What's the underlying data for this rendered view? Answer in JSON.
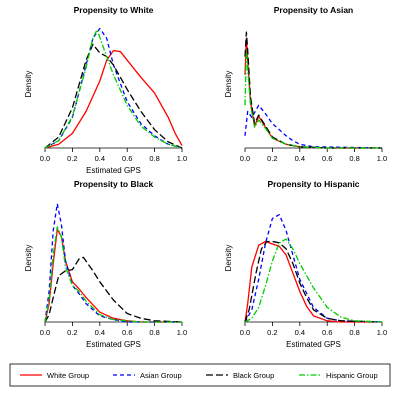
{
  "chart_data": [
    {
      "type": "line",
      "title": "Propensity to White",
      "xlabel": "Estimated GPS",
      "ylabel": "Density",
      "xlim": [
        0,
        1
      ],
      "xticks": [
        "0.0",
        "0.2",
        "0.4",
        "0.6",
        "0.8",
        "1.0"
      ],
      "y_ticks_shown": false,
      "grid": false,
      "series": [
        {
          "name": "White Group",
          "color": "#ff0000",
          "dash": "solid",
          "x": [
            0.0,
            0.1,
            0.2,
            0.3,
            0.4,
            0.45,
            0.5,
            0.55,
            0.6,
            0.7,
            0.8,
            0.9,
            0.95,
            1.0
          ],
          "y": [
            0.0,
            0.03,
            0.12,
            0.3,
            0.55,
            0.72,
            0.8,
            0.79,
            0.72,
            0.58,
            0.45,
            0.25,
            0.12,
            0.02
          ]
        },
        {
          "name": "Asian Group",
          "color": "#0000ff",
          "dash": "dashed",
          "x": [
            0.0,
            0.1,
            0.2,
            0.3,
            0.35,
            0.4,
            0.45,
            0.5,
            0.6,
            0.7,
            0.8,
            0.9,
            1.0
          ],
          "y": [
            0.0,
            0.06,
            0.25,
            0.68,
            0.9,
            0.98,
            0.9,
            0.68,
            0.38,
            0.2,
            0.1,
            0.03,
            0.0
          ]
        },
        {
          "name": "Black Group",
          "color": "#000000",
          "dash": "longdash",
          "x": [
            0.0,
            0.1,
            0.2,
            0.3,
            0.35,
            0.4,
            0.45,
            0.5,
            0.6,
            0.7,
            0.8,
            0.9,
            1.0
          ],
          "y": [
            0.0,
            0.09,
            0.33,
            0.72,
            0.85,
            0.78,
            0.75,
            0.68,
            0.48,
            0.3,
            0.15,
            0.05,
            0.0
          ]
        },
        {
          "name": "Hispanic Group",
          "color": "#00cc00",
          "dash": "dashdot",
          "x": [
            0.0,
            0.1,
            0.2,
            0.3,
            0.35,
            0.38,
            0.45,
            0.5,
            0.6,
            0.7,
            0.8,
            0.9,
            1.0
          ],
          "y": [
            0.0,
            0.06,
            0.26,
            0.66,
            0.9,
            0.97,
            0.75,
            0.6,
            0.35,
            0.18,
            0.09,
            0.03,
            0.0
          ]
        }
      ]
    },
    {
      "type": "line",
      "title": "Propensity to Asian",
      "xlabel": "",
      "ylabel": "Density",
      "xlim": [
        0,
        1
      ],
      "xticks": [
        "0.0",
        "0.2",
        "0.4",
        "0.6",
        "0.8",
        "1.0"
      ],
      "y_ticks_shown": false,
      "grid": false,
      "series": [
        {
          "name": "White Group",
          "color": "#ff0000",
          "dash": "solid",
          "x": [
            0.0,
            0.01,
            0.02,
            0.04,
            0.07,
            0.1,
            0.15,
            0.2,
            0.3,
            0.4,
            0.6,
            1.0
          ],
          "y": [
            0.6,
            0.9,
            0.72,
            0.38,
            0.18,
            0.26,
            0.17,
            0.08,
            0.03,
            0.01,
            0.0,
            0.0
          ]
        },
        {
          "name": "Asian Group",
          "color": "#0000ff",
          "dash": "dashed",
          "x": [
            0.0,
            0.02,
            0.05,
            0.1,
            0.15,
            0.2,
            0.25,
            0.3,
            0.35,
            0.4,
            0.5,
            1.0
          ],
          "y": [
            0.1,
            0.3,
            0.25,
            0.35,
            0.28,
            0.2,
            0.15,
            0.1,
            0.06,
            0.03,
            0.01,
            0.0
          ]
        },
        {
          "name": "Black Group",
          "color": "#000000",
          "dash": "longdash",
          "x": [
            0.0,
            0.01,
            0.02,
            0.04,
            0.07,
            0.1,
            0.15,
            0.2,
            0.3,
            0.4,
            0.6,
            1.0
          ],
          "y": [
            0.75,
            0.95,
            0.8,
            0.42,
            0.2,
            0.27,
            0.18,
            0.09,
            0.03,
            0.01,
            0.0,
            0.0
          ]
        },
        {
          "name": "Hispanic Group",
          "color": "#00cc00",
          "dash": "dashdot",
          "x": [
            0.0,
            0.01,
            0.02,
            0.04,
            0.07,
            0.1,
            0.15,
            0.2,
            0.3,
            0.4,
            0.6,
            1.0
          ],
          "y": [
            0.35,
            0.8,
            0.65,
            0.35,
            0.17,
            0.23,
            0.16,
            0.08,
            0.03,
            0.01,
            0.0,
            0.0
          ]
        }
      ]
    },
    {
      "type": "line",
      "title": "Propensity to Black",
      "xlabel": "Estimated GPS",
      "ylabel": "Density",
      "xlim": [
        0,
        1
      ],
      "xticks": [
        "0.0",
        "0.2",
        "0.4",
        "0.6",
        "0.8",
        "1.0"
      ],
      "y_ticks_shown": false,
      "grid": false,
      "series": [
        {
          "name": "White Group",
          "color": "#ff0000",
          "dash": "solid",
          "x": [
            0.0,
            0.03,
            0.06,
            0.09,
            0.12,
            0.15,
            0.2,
            0.25,
            0.3,
            0.4,
            0.5,
            0.6,
            0.7,
            1.0
          ],
          "y": [
            0.0,
            0.15,
            0.48,
            0.76,
            0.7,
            0.5,
            0.33,
            0.27,
            0.2,
            0.08,
            0.03,
            0.01,
            0.0,
            0.0
          ]
        },
        {
          "name": "Asian Group",
          "color": "#0000ff",
          "dash": "dashed",
          "x": [
            0.0,
            0.03,
            0.06,
            0.09,
            0.12,
            0.15,
            0.2,
            0.25,
            0.3,
            0.4,
            0.5,
            0.6,
            1.0
          ],
          "y": [
            0.0,
            0.25,
            0.75,
            0.97,
            0.8,
            0.5,
            0.3,
            0.23,
            0.15,
            0.05,
            0.02,
            0.0,
            0.0
          ]
        },
        {
          "name": "Black Group",
          "color": "#000000",
          "dash": "longdash",
          "x": [
            0.0,
            0.03,
            0.06,
            0.1,
            0.15,
            0.2,
            0.25,
            0.28,
            0.35,
            0.4,
            0.5,
            0.6,
            0.7,
            0.8,
            1.0
          ],
          "y": [
            0.0,
            0.06,
            0.2,
            0.38,
            0.42,
            0.43,
            0.52,
            0.53,
            0.42,
            0.33,
            0.18,
            0.07,
            0.03,
            0.01,
            0.0
          ]
        },
        {
          "name": "Hispanic Group",
          "color": "#00cc00",
          "dash": "dashdot",
          "x": [
            0.0,
            0.03,
            0.06,
            0.09,
            0.12,
            0.15,
            0.2,
            0.25,
            0.3,
            0.4,
            0.5,
            0.6,
            0.7,
            1.0
          ],
          "y": [
            0.0,
            0.18,
            0.55,
            0.78,
            0.7,
            0.45,
            0.3,
            0.25,
            0.17,
            0.06,
            0.02,
            0.01,
            0.0,
            0.0
          ]
        }
      ]
    },
    {
      "type": "line",
      "title": "Propensity to Hispanic",
      "xlabel": "Estimated GPS",
      "ylabel": "Density",
      "xlim": [
        0,
        1
      ],
      "xticks": [
        "0.0",
        "0.2",
        "0.4",
        "0.6",
        "0.8",
        "1.0"
      ],
      "y_ticks_shown": false,
      "grid": false,
      "series": [
        {
          "name": "White Group",
          "color": "#ff0000",
          "dash": "solid",
          "x": [
            0.0,
            0.02,
            0.05,
            0.1,
            0.15,
            0.2,
            0.25,
            0.3,
            0.35,
            0.4,
            0.45,
            0.5,
            0.6,
            0.7,
            1.0
          ],
          "y": [
            0.0,
            0.15,
            0.45,
            0.63,
            0.66,
            0.64,
            0.62,
            0.55,
            0.4,
            0.25,
            0.13,
            0.05,
            0.01,
            0.0,
            0.0
          ]
        },
        {
          "name": "Asian Group",
          "color": "#0000ff",
          "dash": "dashed",
          "x": [
            0.0,
            0.05,
            0.1,
            0.15,
            0.2,
            0.25,
            0.3,
            0.35,
            0.4,
            0.5,
            0.6,
            0.7,
            1.0
          ],
          "y": [
            0.0,
            0.1,
            0.35,
            0.65,
            0.85,
            0.88,
            0.75,
            0.55,
            0.35,
            0.12,
            0.03,
            0.01,
            0.0
          ]
        },
        {
          "name": "Black Group",
          "color": "#000000",
          "dash": "longdash",
          "x": [
            0.0,
            0.03,
            0.08,
            0.12,
            0.16,
            0.2,
            0.25,
            0.3,
            0.35,
            0.4,
            0.45,
            0.5,
            0.6,
            0.7,
            1.0
          ],
          "y": [
            0.0,
            0.1,
            0.4,
            0.6,
            0.66,
            0.66,
            0.65,
            0.6,
            0.48,
            0.32,
            0.2,
            0.1,
            0.03,
            0.01,
            0.0
          ]
        },
        {
          "name": "Hispanic Group",
          "color": "#00cc00",
          "dash": "dashdot",
          "x": [
            0.0,
            0.05,
            0.1,
            0.15,
            0.2,
            0.25,
            0.3,
            0.35,
            0.4,
            0.5,
            0.6,
            0.7,
            0.8,
            1.0
          ],
          "y": [
            0.0,
            0.03,
            0.12,
            0.3,
            0.5,
            0.65,
            0.68,
            0.6,
            0.48,
            0.28,
            0.12,
            0.04,
            0.01,
            0.0
          ]
        }
      ]
    }
  ],
  "legend": {
    "placement": "bottom",
    "items": [
      {
        "label": "White Group",
        "color": "#ff0000",
        "dash": "solid"
      },
      {
        "label": "Asian Group",
        "color": "#0000ff",
        "dash": "dashed"
      },
      {
        "label": "Black Group",
        "color": "#000000",
        "dash": "longdash"
      },
      {
        "label": "Hispanic Group",
        "color": "#00cc00",
        "dash": "dashdot"
      }
    ]
  }
}
